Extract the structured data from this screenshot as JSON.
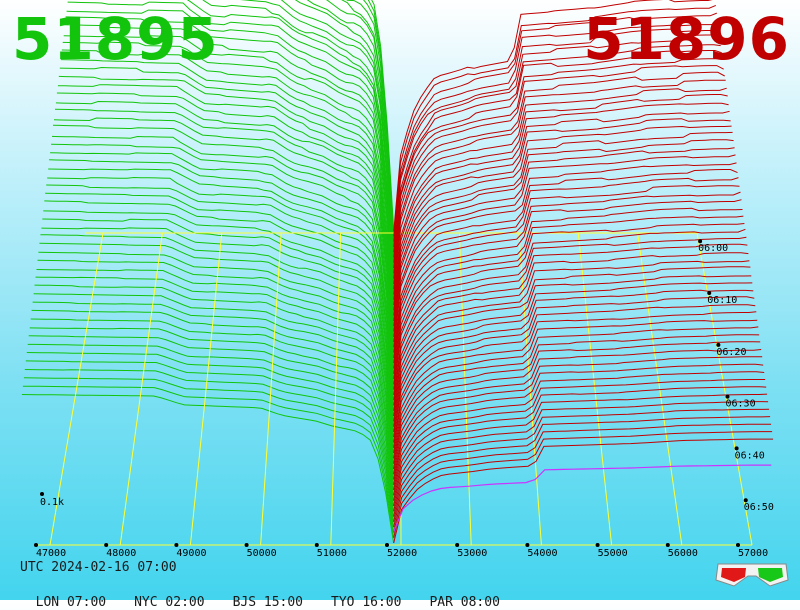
{
  "header": {
    "bid_price": "51895",
    "ask_price": "51896"
  },
  "footer": {
    "utc": "UTC 2024-02-16 07:00",
    "zones": [
      "LON 07:00",
      "NYC 02:00",
      "BJS 15:00",
      "TYO 16:00",
      "PAR 08:00"
    ]
  },
  "icons": {
    "glasses": "3d-glasses-icon"
  },
  "colors": {
    "bid": "#12c40c",
    "ask": "#c00000",
    "grid": "#ffff33",
    "current_ask": "#cc33ff"
  },
  "chart_data": {
    "type": "depth-3d",
    "x": [
      47000,
      48000,
      49000,
      50000,
      51000,
      52000,
      53000,
      54000,
      55000,
      56000,
      57000
    ],
    "x_tick_labels": [
      "47000",
      "48000",
      "49000",
      "50000",
      "51000",
      "52000",
      "53000",
      "54000",
      "55000",
      "56000",
      "57000"
    ],
    "time_ticks": [
      "06:00",
      "06:10",
      "06:20",
      "06:30",
      "06:40",
      "06:50"
    ],
    "depth_label": "0.1k",
    "spread": {
      "bid": 51895,
      "ask": 51896
    },
    "bid_profile": {
      "x": [
        46600,
        48500,
        48900,
        50000,
        50300,
        50800,
        51000,
        51400,
        51600,
        51750,
        51880
      ],
      "level": [
        1.0,
        0.99,
        0.93,
        0.91,
        0.86,
        0.82,
        0.79,
        0.75,
        0.68,
        0.45,
        0.0
      ]
    },
    "ask_profile": {
      "x": [
        51896,
        52000,
        52200,
        52400,
        52600,
        53000,
        53300,
        53900,
        54000,
        55300,
        56000,
        57000
      ],
      "level": [
        0.0,
        0.22,
        0.35,
        0.42,
        0.46,
        0.48,
        0.5,
        0.52,
        0.65,
        0.67,
        0.69,
        0.7
      ]
    }
  }
}
